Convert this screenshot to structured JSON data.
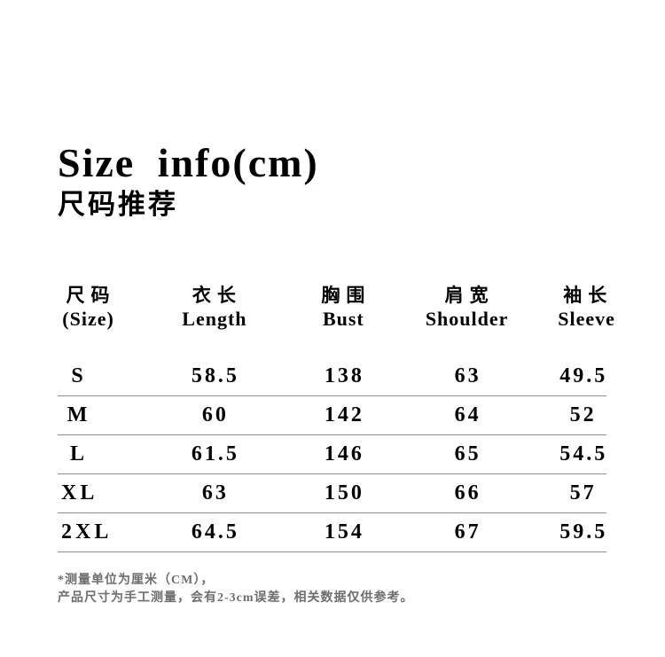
{
  "page": {
    "title": "Size info(cm)",
    "subtitle": "尺码推荐"
  },
  "table": {
    "columns": [
      {
        "zh": "尺码",
        "en": "(Size)"
      },
      {
        "zh": "衣长",
        "en": "Length"
      },
      {
        "zh": "胸围",
        "en": "Bust"
      },
      {
        "zh": "肩宽",
        "en": "Shoulder"
      },
      {
        "zh": "袖长",
        "en": "Sleeve"
      }
    ],
    "rows": [
      {
        "size": "S",
        "length": "58.5",
        "bust": "138",
        "shoulder": "63",
        "sleeve": "49.5"
      },
      {
        "size": "M",
        "length": "60",
        "bust": "142",
        "shoulder": "64",
        "sleeve": "52"
      },
      {
        "size": "L",
        "length": "61.5",
        "bust": "146",
        "shoulder": "65",
        "sleeve": "54.5"
      },
      {
        "size": "XL",
        "length": "63",
        "bust": "150",
        "shoulder": "66",
        "sleeve": "57"
      },
      {
        "size": "2XL",
        "length": "64.5",
        "bust": "154",
        "shoulder": "67",
        "sleeve": "59.5"
      }
    ]
  },
  "footnotes": {
    "line1": "*测量单位为厘米（CM），",
    "line2": "产品尺寸为手工测量，会有2-3cm误差，相关数据仅供参考。"
  },
  "colors": {
    "text": "#000000",
    "divider": "#8e8e8e",
    "footnote": "#6e6e6e",
    "background": "#ffffff"
  }
}
